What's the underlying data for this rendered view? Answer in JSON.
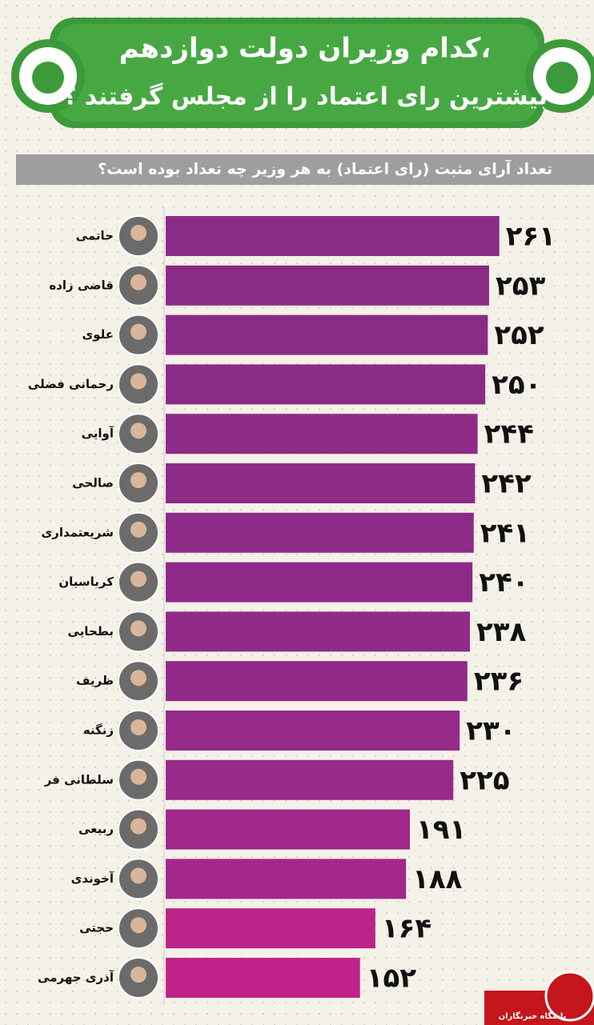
{
  "chart_data": {
    "type": "bar",
    "orientation": "horizontal",
    "title": [
      "کدام وزیران دولت دوازدهم،",
      "بیشترین رای اعتماد را از مجلس گرفتند ؟"
    ],
    "subtitle": "تعداد آرای مثبت (رای اعتماد) به هر وزیر چه تعداد بوده است؟",
    "categories": [
      "حاتمی",
      "قاضی زاده",
      "علوی",
      "رحمانی فضلی",
      "آوایی",
      "صالحی",
      "شریعتمداری",
      "کرباسیان",
      "بطحایی",
      "ظریف",
      "زنگنه",
      "سلطانی فر",
      "ربیعی",
      "آخوندی",
      "حجتی",
      "آذری جهرمی"
    ],
    "values": [
      261,
      253,
      252,
      250,
      244,
      242,
      241,
      240,
      238,
      236,
      230,
      225,
      191,
      188,
      164,
      152
    ],
    "value_labels": [
      "۲۶۱",
      "۲۵۳",
      "۲۵۲",
      "۲۵۰",
      "۲۴۴",
      "۲۴۲",
      "۲۴۱",
      "۲۴۰",
      "۲۳۸",
      "۲۳۶",
      "۲۳۰",
      "۲۲۵",
      "۱۹۱",
      "۱۸۸",
      "۱۶۴",
      "۱۵۲"
    ],
    "colors": [
      "#8a2c86",
      "#8a2c86",
      "#8a2c86",
      "#8a2c86",
      "#8c2b88",
      "#8c2b88",
      "#8e2a88",
      "#8e2a88",
      "#912a89",
      "#912a89",
      "#952a89",
      "#982a89",
      "#9f2889",
      "#a4278a",
      "#bb2488",
      "#c1238a"
    ],
    "xlim": [
      0,
      300
    ],
    "source": "باشگاه خبرنگاران"
  }
}
